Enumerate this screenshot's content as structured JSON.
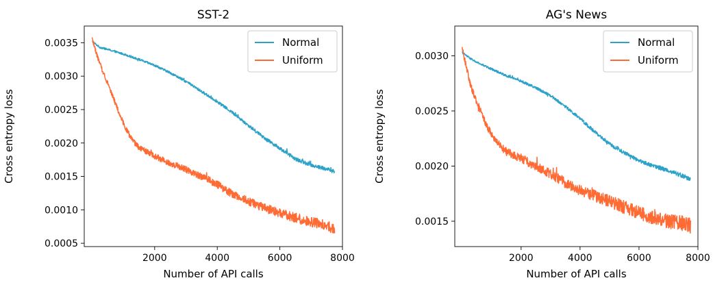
{
  "chart_data": [
    {
      "type": "line",
      "title": "SST-2",
      "xlabel": "Number of API calls",
      "ylabel": "Cross entropy loss",
      "xlim": [
        -250,
        8000
      ],
      "ylim": [
        0.00045,
        0.00375
      ],
      "xticks": [
        2000,
        4000,
        6000,
        8000
      ],
      "xtick_labels": [
        "2000",
        "4000",
        "6000",
        "8000"
      ],
      "yticks": [
        0.0005,
        0.001,
        0.0015,
        0.002,
        0.0025,
        0.003,
        0.0035
      ],
      "ytick_labels": [
        "0.0005",
        "0.0010",
        "0.0015",
        "0.0020",
        "0.0025",
        "0.0030",
        "0.0035"
      ],
      "grid": false,
      "legend_position": "top-right",
      "series": [
        {
          "name": "Normal",
          "color": "#2ca2c8",
          "x": [
            0,
            250,
            500,
            1000,
            1500,
            2000,
            2500,
            3000,
            3500,
            4000,
            4500,
            5000,
            5500,
            6000,
            6500,
            7000,
            7500,
            7750
          ],
          "y": [
            0.00352,
            0.00343,
            0.0034,
            0.00333,
            0.00325,
            0.00316,
            0.00305,
            0.00292,
            0.00277,
            0.00262,
            0.00245,
            0.00226,
            0.00208,
            0.00192,
            0.00176,
            0.00167,
            0.00161,
            0.00157
          ],
          "noise": 3e-05
        },
        {
          "name": "Uniform",
          "color": "#ff6b35",
          "x": [
            0,
            100,
            200,
            300,
            500,
            700,
            900,
            1100,
            1300,
            1500,
            2000,
            2500,
            3000,
            3500,
            4000,
            4500,
            5000,
            5500,
            6000,
            6500,
            7000,
            7500,
            7750
          ],
          "y": [
            0.00358,
            0.0034,
            0.00325,
            0.00312,
            0.0029,
            0.00265,
            0.0024,
            0.0022,
            0.00203,
            0.00193,
            0.0018,
            0.0017,
            0.0016,
            0.0015,
            0.00138,
            0.00123,
            0.00113,
            0.00103,
            0.00095,
            0.00088,
            0.00082,
            0.00076,
            0.00071
          ],
          "noise": 8e-05
        }
      ]
    },
    {
      "type": "line",
      "title": "AG's News",
      "xlabel": "Number of API calls",
      "ylabel": "Cross entropy loss",
      "xlim": [
        -250,
        8000
      ],
      "ylim": [
        0.00127,
        0.00327
      ],
      "xticks": [
        2000,
        4000,
        6000,
        8000
      ],
      "xtick_labels": [
        "2000",
        "4000",
        "6000",
        "8000"
      ],
      "yticks": [
        0.0015,
        0.002,
        0.0025,
        0.003
      ],
      "ytick_labels": [
        "0.0015",
        "0.0020",
        "0.0025",
        "0.0030"
      ],
      "grid": false,
      "legend_position": "top-right",
      "series": [
        {
          "name": "Normal",
          "color": "#2ca2c8",
          "x": [
            0,
            250,
            500,
            1000,
            1500,
            2000,
            2500,
            3000,
            3500,
            4000,
            4500,
            5000,
            5500,
            6000,
            6500,
            7000,
            7500,
            7750
          ],
          "y": [
            0.00303,
            0.00298,
            0.00294,
            0.00288,
            0.00282,
            0.00277,
            0.00271,
            0.00264,
            0.00254,
            0.00243,
            0.00231,
            0.0022,
            0.00212,
            0.00205,
            0.002,
            0.00196,
            0.00191,
            0.00188
          ],
          "noise": 2e-05
        },
        {
          "name": "Uniform",
          "color": "#ff6b35",
          "x": [
            0,
            100,
            200,
            300,
            500,
            700,
            900,
            1100,
            1300,
            1500,
            2000,
            2500,
            3000,
            3500,
            4000,
            4500,
            5000,
            5500,
            6000,
            6500,
            7000,
            7500,
            7750
          ],
          "y": [
            0.00308,
            0.00295,
            0.00283,
            0.00272,
            0.00258,
            0.00245,
            0.00233,
            0.00225,
            0.00218,
            0.00213,
            0.00207,
            0.002,
            0.00193,
            0.00185,
            0.00178,
            0.00173,
            0.00168,
            0.00163,
            0.00158,
            0.00153,
            0.0015,
            0.00148,
            0.00146
          ],
          "noise": 7e-05
        }
      ]
    }
  ]
}
